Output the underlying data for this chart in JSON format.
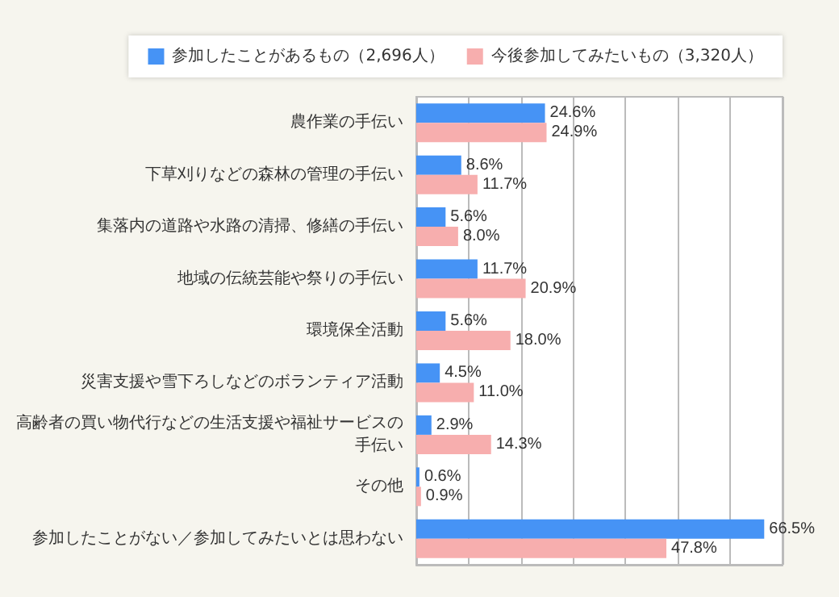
{
  "chart_data": {
    "type": "bar",
    "orientation": "horizontal",
    "categories": [
      "農作業の手伝い",
      "下草刈りなどの森林の管理の手伝い",
      "集落内の道路や水路の清掃、修繕の手伝い",
      "地域の伝統芸能や祭りの手伝い",
      "環境保全活動",
      "災害支援や雪下ろしなどのボランティア活動",
      "高齢者の買い物代行などの生活支援や福祉サービスの手伝い",
      "その他",
      "参加したことがない／参加してみたいとは思わない"
    ],
    "series": [
      {
        "name": "参加したことがあるもの（2,696人）",
        "color": "#4693f5",
        "values": [
          24.6,
          8.6,
          5.6,
          11.7,
          5.6,
          4.5,
          2.9,
          0.6,
          66.5
        ],
        "value_labels": [
          "24.6%",
          "8.6%",
          "5.6%",
          "11.7%",
          "5.6%",
          "4.5%",
          "2.9%",
          "0.6%",
          "66.5%"
        ]
      },
      {
        "name": "今後参加してみたいもの（3,320人）",
        "color": "#f7aeae",
        "values": [
          24.9,
          11.7,
          8.0,
          20.9,
          18.0,
          11.0,
          14.3,
          0.9,
          47.8
        ],
        "value_labels": [
          "24.9%",
          "11.7%",
          "8.0%",
          "20.9%",
          "18.0%",
          "11.0%",
          "14.3%",
          "0.9%",
          "47.8%"
        ]
      }
    ],
    "xlim": [
      0,
      70
    ],
    "xticks": [
      {
        "value": 0,
        "label": null
      },
      {
        "value": 10,
        "label": null
      },
      {
        "value": 20,
        "label": null
      },
      {
        "value": 30,
        "label": null
      },
      {
        "value": 40,
        "label": null
      },
      {
        "value": 50,
        "label": null
      },
      {
        "value": 60,
        "label": null
      },
      {
        "value": 70,
        "label": null
      }
    ],
    "tick_labels": "y",
    "grid": "x",
    "legend": "top"
  }
}
